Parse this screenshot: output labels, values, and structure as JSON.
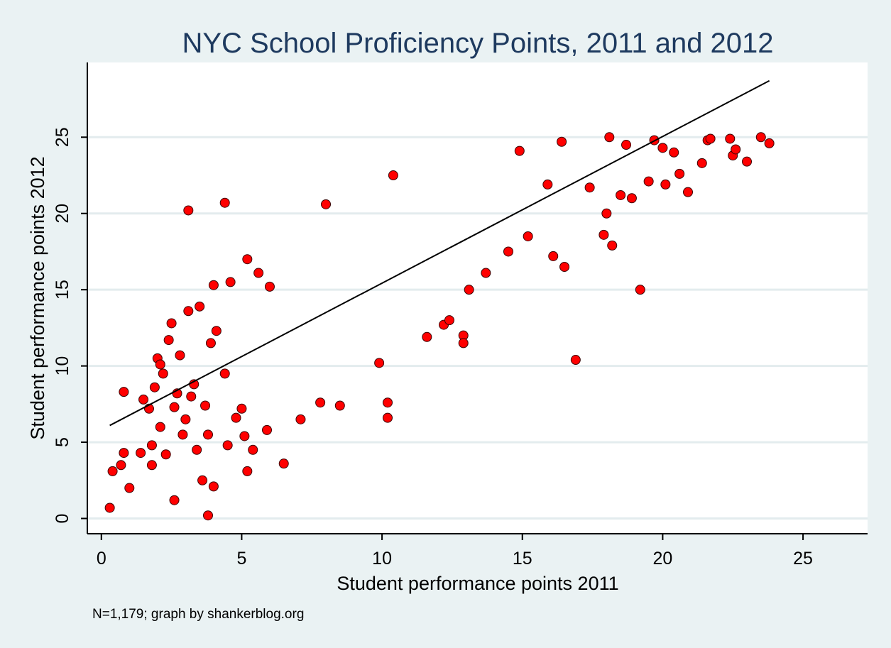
{
  "chart_data": {
    "type": "scatter",
    "title": "NYC School Proficiency Points, 2011 and 2012",
    "xlabel": "Student performance points 2011",
    "ylabel": "Student performance points 2012",
    "note": "N=1,179; graph by shankerblog.org",
    "xlim": [
      -0.5,
      27.3
    ],
    "ylim": [
      -1.0,
      29.9
    ],
    "xticks": [
      0,
      5,
      10,
      15,
      20,
      25
    ],
    "yticks": [
      0,
      5,
      10,
      15,
      20,
      25
    ],
    "grid": "horizontal",
    "colors": {
      "background": "#eaf2f3",
      "plot_background": "#ffffff",
      "gridline": "#e3ecee",
      "title": "#1e3a5f",
      "marker_fill": "#ff0000",
      "marker_stroke": "#3a0000",
      "fit_line": "#000000"
    },
    "fit_line": {
      "x": [
        0.3,
        23.8
      ],
      "y": [
        6.1,
        28.7
      ]
    },
    "series": [
      {
        "marker": "circle",
        "x": [
          0.3,
          0.4,
          0.7,
          0.8,
          0.8,
          1.0,
          1.4,
          1.5,
          1.7,
          1.8,
          1.8,
          1.9,
          2.0,
          2.1,
          2.1,
          2.2,
          2.3,
          2.4,
          2.5,
          2.6,
          2.6,
          2.7,
          2.8,
          2.9,
          3.0,
          3.1,
          3.1,
          3.2,
          3.3,
          3.4,
          3.5,
          3.6,
          3.7,
          3.8,
          3.8,
          3.9,
          4.0,
          4.0,
          4.1,
          4.4,
          4.4,
          4.5,
          4.6,
          4.8,
          5.0,
          5.1,
          5.2,
          5.2,
          5.4,
          5.6,
          5.9,
          6.0,
          6.5,
          7.1,
          7.8,
          8.0,
          8.5,
          9.9,
          10.2,
          10.2,
          10.4,
          11.6,
          12.2,
          12.4,
          12.9,
          12.9,
          13.1,
          13.7,
          14.5,
          14.9,
          15.2,
          15.9,
          16.1,
          16.4,
          16.5,
          16.9,
          17.4,
          17.9,
          18.0,
          18.1,
          18.2,
          18.5,
          18.7,
          18.9,
          19.2,
          19.5,
          19.7,
          20.0,
          20.1,
          20.4,
          20.6,
          20.9,
          21.4,
          21.6,
          21.7,
          22.4,
          22.5,
          22.6,
          23.0,
          23.5,
          23.8
        ],
        "y": [
          0.7,
          3.1,
          3.5,
          4.3,
          8.3,
          2.0,
          4.3,
          7.8,
          7.2,
          4.8,
          3.5,
          8.6,
          10.5,
          10.1,
          6.0,
          9.5,
          4.2,
          11.7,
          12.8,
          1.2,
          7.3,
          8.2,
          10.7,
          5.5,
          6.5,
          20.2,
          13.6,
          8.0,
          8.8,
          4.5,
          13.9,
          2.5,
          7.4,
          0.2,
          5.5,
          11.5,
          2.1,
          15.3,
          12.3,
          20.7,
          9.5,
          4.8,
          15.5,
          6.6,
          7.2,
          5.4,
          17.0,
          3.1,
          4.5,
          16.1,
          5.8,
          15.2,
          3.6,
          6.5,
          7.6,
          20.6,
          7.4,
          10.2,
          7.6,
          6.6,
          22.5,
          11.9,
          12.7,
          13.0,
          12.0,
          11.5,
          15.0,
          16.1,
          17.5,
          24.1,
          18.5,
          21.9,
          17.2,
          24.7,
          16.5,
          10.4,
          21.7,
          18.6,
          20.0,
          25.0,
          17.9,
          21.2,
          24.5,
          21.0,
          15.0,
          22.1,
          24.8,
          24.3,
          21.9,
          24.0,
          22.6,
          21.4,
          23.3,
          24.8,
          24.9,
          24.9,
          23.8,
          24.2,
          23.4,
          25.0,
          24.6
        ]
      }
    ]
  }
}
